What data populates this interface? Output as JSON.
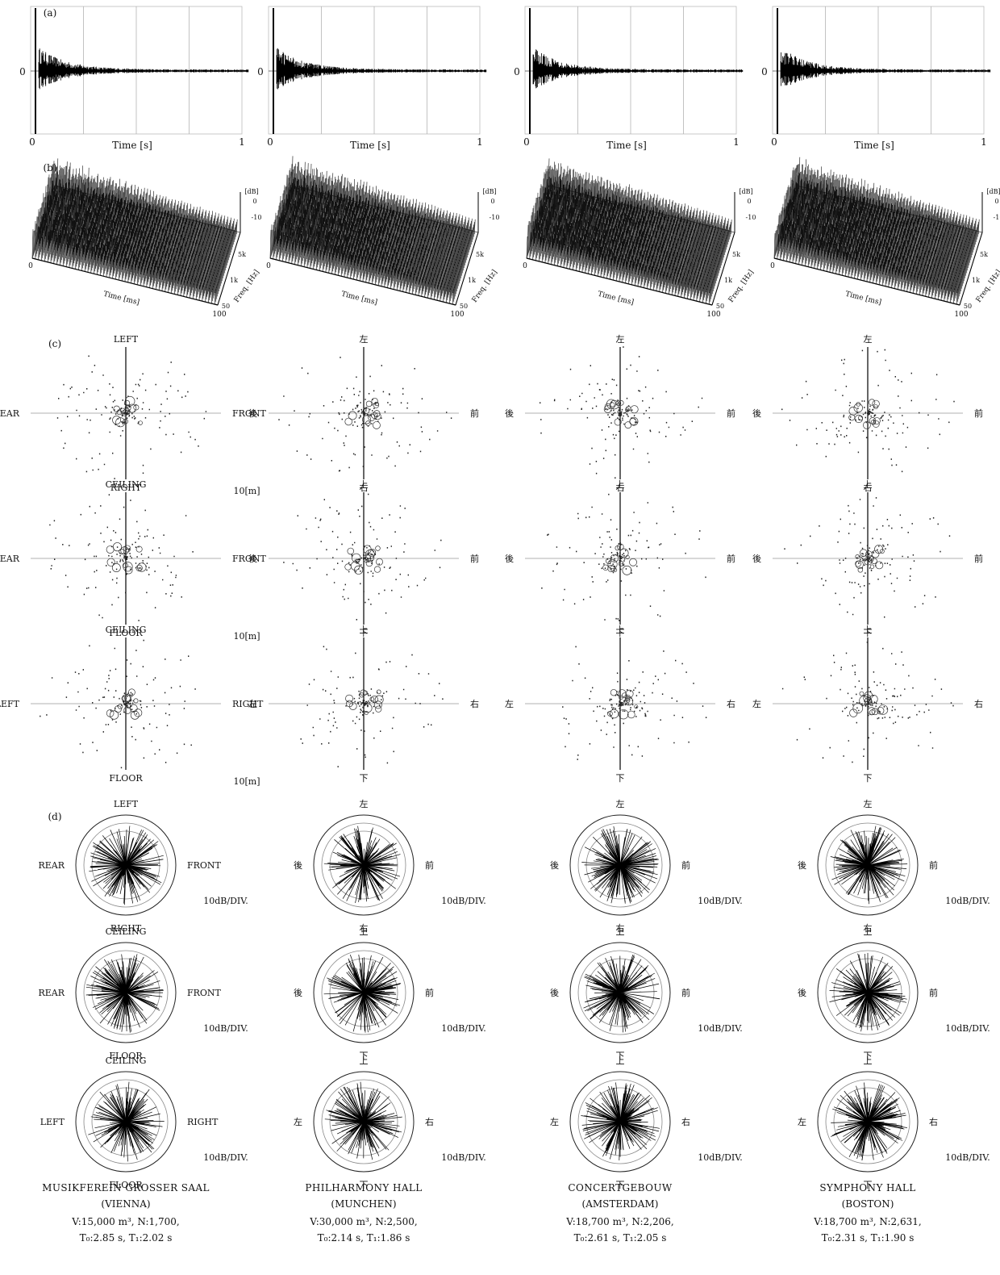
{
  "panel_labels": {
    "a": "(a)",
    "b": "(b)",
    "c": "(c)",
    "d": "(d)"
  },
  "impulse": {
    "time_label": "Time [s]",
    "x_start": "0",
    "x_end": "1",
    "y_zero": "0"
  },
  "waterfall": {
    "time_label": "Time [ms]",
    "freq_label": "Freq. [Hz]",
    "t_start": "0",
    "t_end": "100",
    "db_label": "[dB]",
    "db0": "0",
    "db1": "-10",
    "freq_ticks": [
      "50",
      "1k",
      "5k"
    ]
  },
  "scale_m": "10[m]",
  "scale_db": "10dB/DIV.",
  "halls": [
    {
      "id": "vienna",
      "name": "MUSIKFEREIN GROSSER SAAL",
      "city": "(VIENNA)",
      "line1": "V:15,000 m³, N:1,700,",
      "line2": "T₀:2.85 s, T₁:2.02 s",
      "planes": [
        {
          "top": "LEFT",
          "left": "REAR",
          "right": "FRONT",
          "bottom": "RIGHT"
        },
        {
          "top": "CEILING",
          "left": "REAR",
          "right": "FRONT",
          "bottom": "FLOOR"
        },
        {
          "top": "CEILING",
          "left": "LEFT",
          "right": "RIGHT",
          "bottom": "FLOOR"
        }
      ]
    },
    {
      "id": "munchen",
      "name": "PHILHARMONY HALL",
      "city": "(MUNCHEN)",
      "line1": "V:30,000 m³, N:2,500,",
      "line2": "T₀:2.14 s, T₁:1.86 s",
      "planes": [
        {
          "top": "左",
          "left": "後",
          "right": "前",
          "bottom": "右"
        },
        {
          "top": "上",
          "left": "後",
          "right": "前",
          "bottom": "下"
        },
        {
          "top": "上",
          "left": "左",
          "right": "右",
          "bottom": "下"
        }
      ]
    },
    {
      "id": "amsterdam",
      "name": "CONCERTGEBOUW",
      "city": "(AMSTERDAM)",
      "line1": "V:18,700 m³, N:2,206,",
      "line2": "T₀:2.61 s, T₁:2.05 s",
      "planes": [
        {
          "top": "左",
          "left": "後",
          "right": "前",
          "bottom": "右"
        },
        {
          "top": "上",
          "left": "後",
          "right": "前",
          "bottom": "下"
        },
        {
          "top": "上",
          "left": "左",
          "right": "右",
          "bottom": "下"
        }
      ]
    },
    {
      "id": "boston",
      "name": "SYMPHONY HALL",
      "city": "(BOSTON)",
      "line1": "V:18,700 m³, N:2,631,",
      "line2": "T₀:2.31 s, T₁:1.90 s",
      "planes": [
        {
          "top": "左",
          "left": "後",
          "right": "前",
          "bottom": "右"
        },
        {
          "top": "上",
          "left": "後",
          "right": "前",
          "bottom": "下"
        },
        {
          "top": "上",
          "left": "左",
          "right": "右",
          "bottom": "下"
        }
      ]
    }
  ]
}
